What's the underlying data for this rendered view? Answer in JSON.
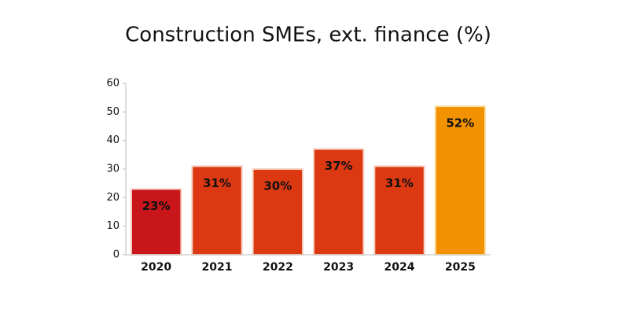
{
  "chart_data": {
    "type": "bar",
    "title": "Construction SMEs, ext. finance (%)",
    "categories": [
      "2020",
      "2021",
      "2022",
      "2023",
      "2024",
      "2025"
    ],
    "values": [
      23,
      31,
      30,
      37,
      31,
      52
    ],
    "value_labels": [
      "23%",
      "31%",
      "30%",
      "37%",
      "31%",
      "52%"
    ],
    "colors": [
      "#c8161b",
      "#dc3812",
      "#dc3812",
      "#dc3812",
      "#dc3812",
      "#f39200"
    ],
    "ylim": [
      0,
      60
    ],
    "yticks": [
      0,
      10,
      20,
      30,
      40,
      50,
      60
    ],
    "grid": false
  }
}
